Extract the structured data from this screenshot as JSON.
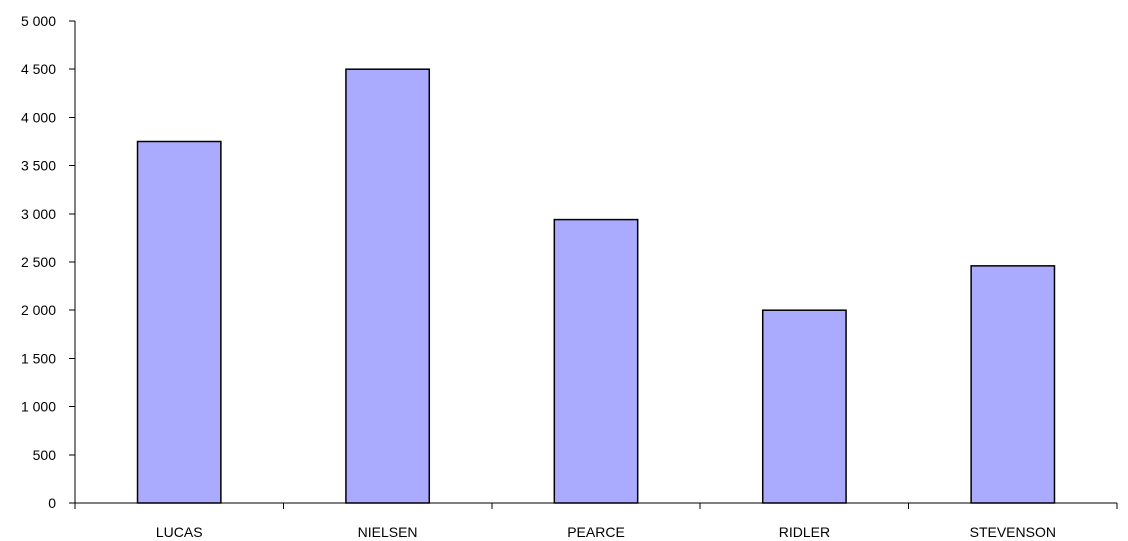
{
  "chart_data": {
    "type": "bar",
    "title": "",
    "xlabel": "",
    "ylabel": "",
    "categories": [
      "LUCAS",
      "NIELSEN",
      "PEARCE",
      "RIDLER",
      "STEVENSON"
    ],
    "values": [
      3750,
      4500,
      2940,
      2000,
      2460
    ],
    "ylim": [
      0,
      5000
    ],
    "yticks": [
      0,
      500,
      1000,
      1500,
      2000,
      2500,
      3000,
      3500,
      4000,
      4500,
      5000
    ],
    "ytick_labels": [
      "0",
      "500",
      "1 000",
      "1 500",
      "2 000",
      "2 500",
      "3 000",
      "3 500",
      "4 000",
      "4 500",
      "5 000"
    ],
    "grid": false,
    "legend": "none",
    "colors": {
      "bar_fill": "#aaaaff",
      "bar_stroke": "#000000",
      "axis": "#000000",
      "text": "#000000"
    }
  }
}
